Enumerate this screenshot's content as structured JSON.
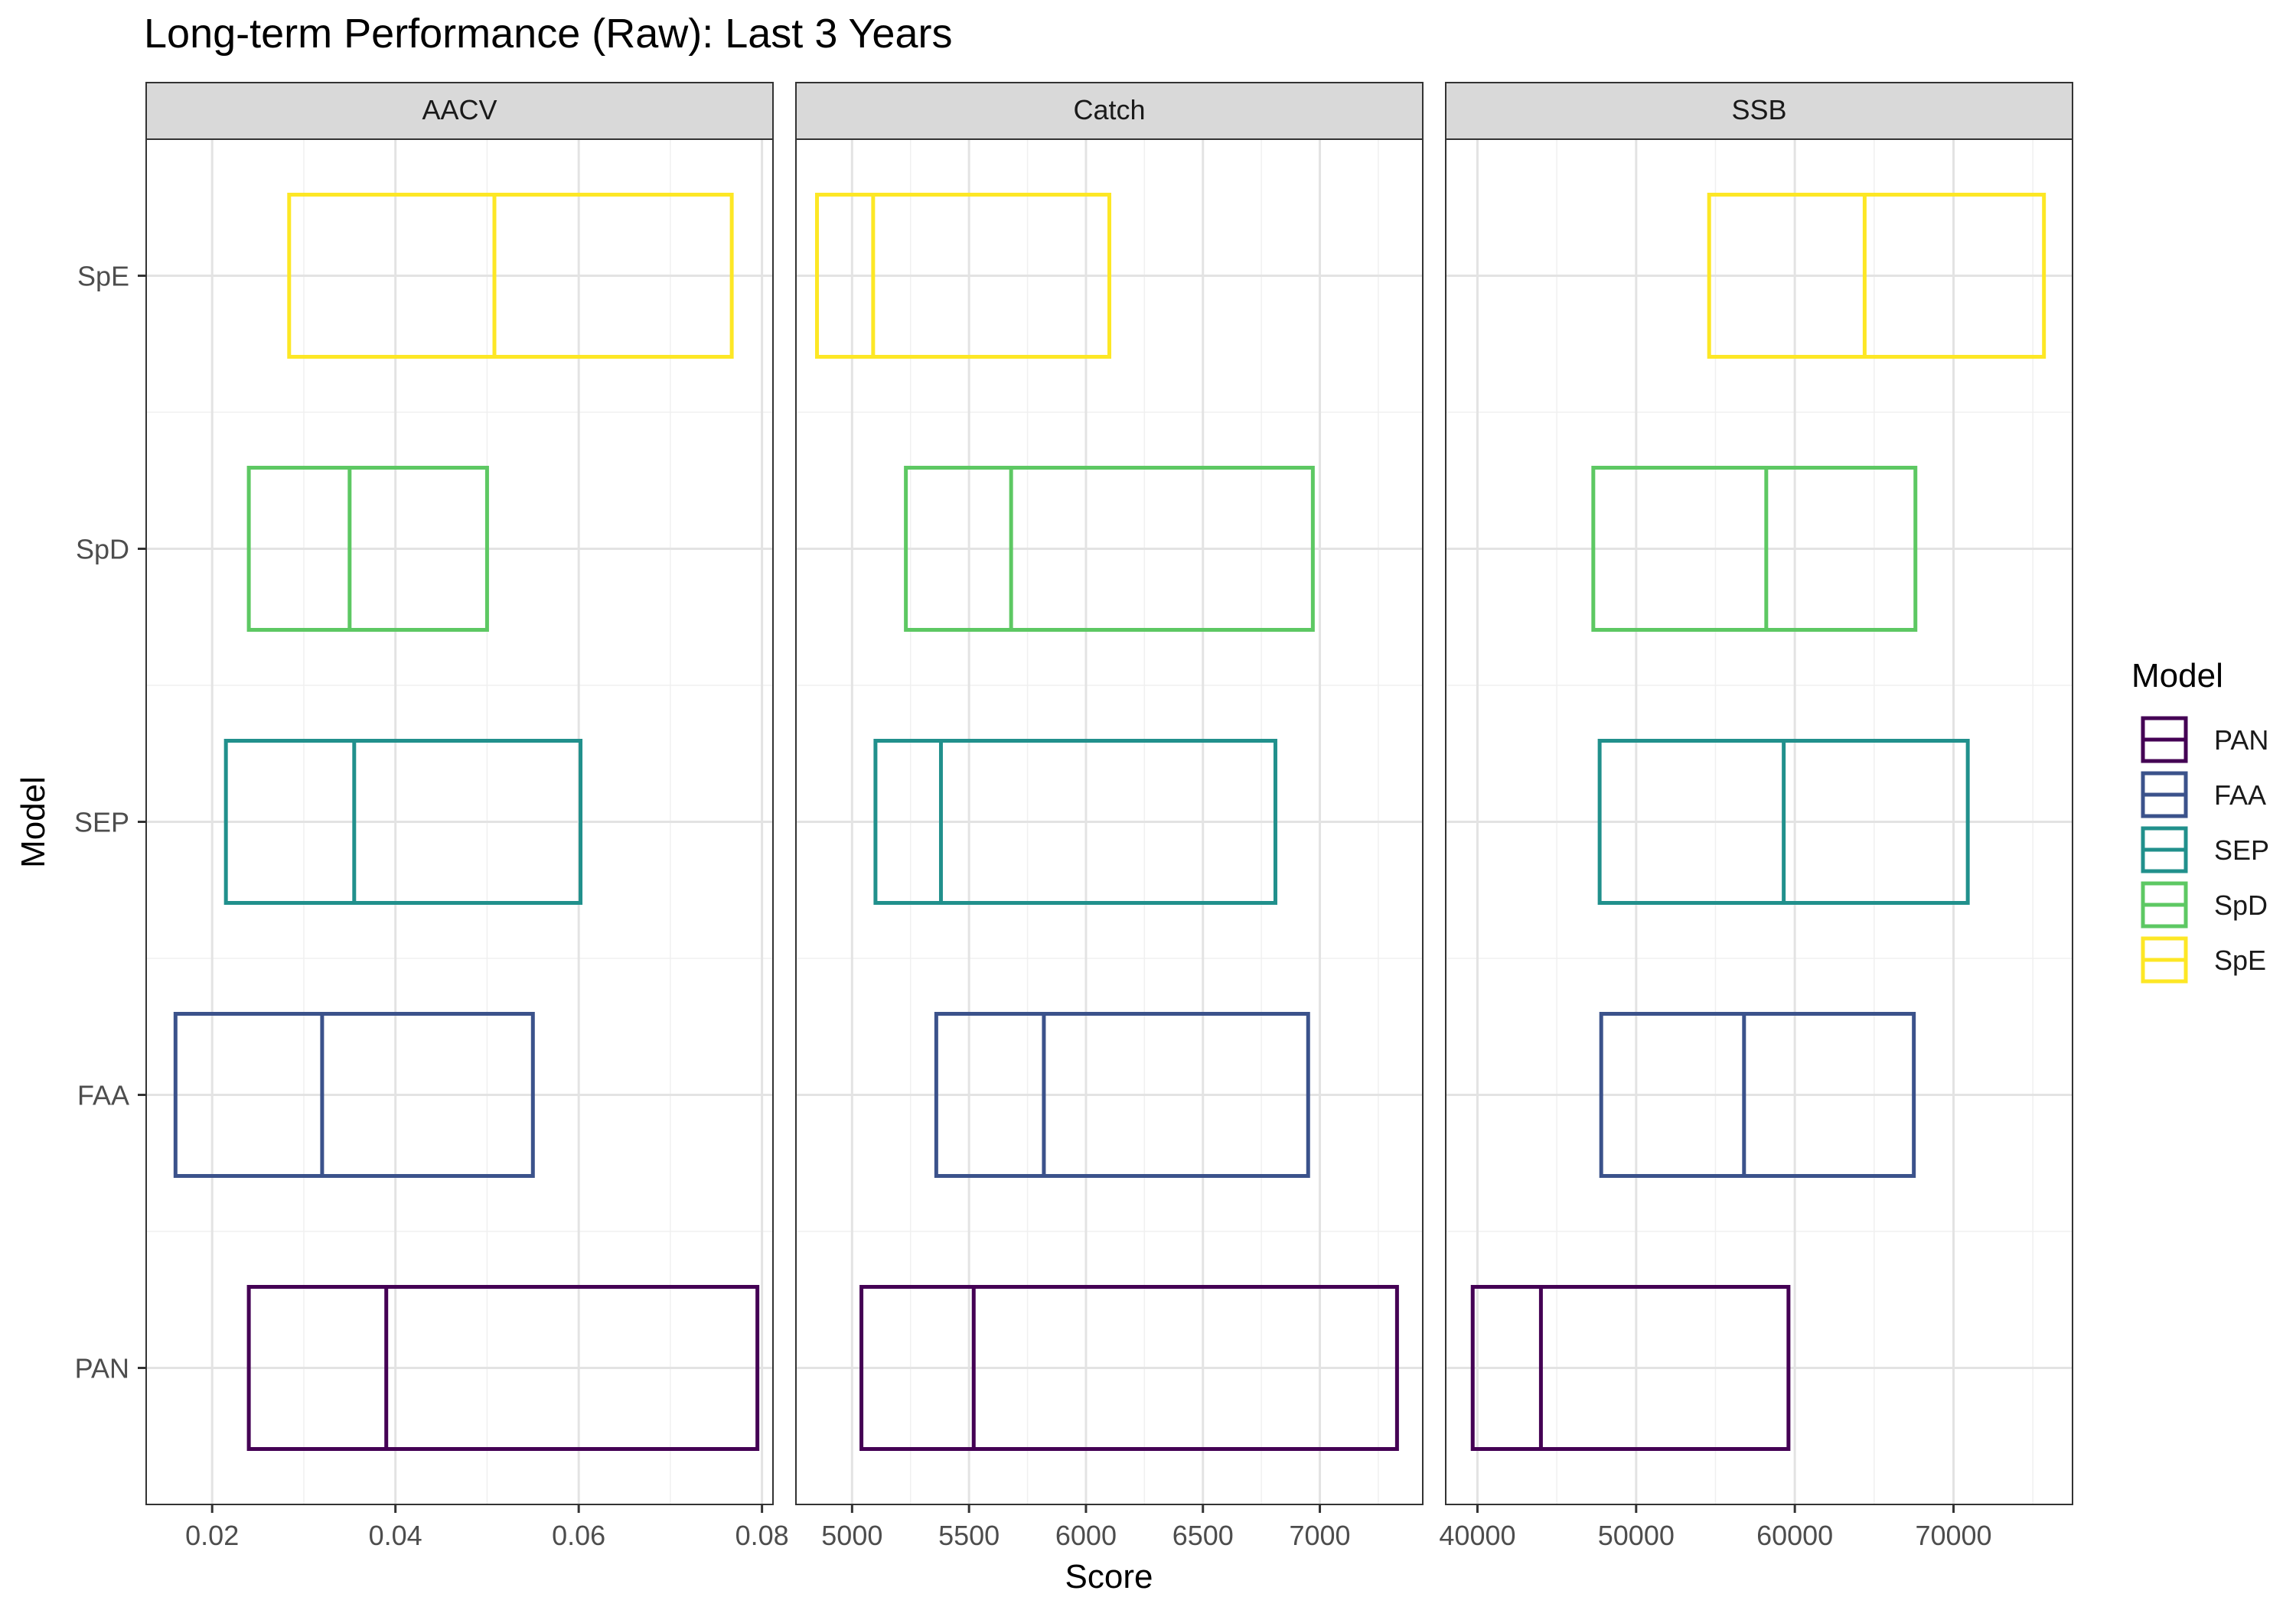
{
  "chart_data": {
    "type": "boxplot",
    "title": "Long-term Performance (Raw): Last 3 Years",
    "xlabel": "Score",
    "ylabel": "Model",
    "categories": [
      "PAN",
      "FAA",
      "SEP",
      "SpD",
      "SpE"
    ],
    "legend": {
      "title": "Model",
      "position": "right",
      "entries": [
        {
          "name": "PAN",
          "color": "#440154"
        },
        {
          "name": "FAA",
          "color": "#3B528B"
        },
        {
          "name": "SEP",
          "color": "#21908C"
        },
        {
          "name": "SpD",
          "color": "#5DC863"
        },
        {
          "name": "SpE",
          "color": "#FDE725"
        }
      ]
    },
    "grid": true,
    "panels": [
      {
        "name": "AACV",
        "xlim": [
          0.0128,
          0.0812
        ],
        "ticks": [
          0.02,
          0.04,
          0.06,
          0.08
        ],
        "tick_labels": [
          "0.02",
          "0.04",
          "0.06",
          "0.08"
        ],
        "boxes": [
          {
            "model": "PAN",
            "q1": 0.024,
            "median": 0.039,
            "q3": 0.0795
          },
          {
            "model": "FAA",
            "q1": 0.016,
            "median": 0.032,
            "q3": 0.055
          },
          {
            "model": "SEP",
            "q1": 0.0215,
            "median": 0.0355,
            "q3": 0.0602
          },
          {
            "model": "SpD",
            "q1": 0.024,
            "median": 0.035,
            "q3": 0.05
          },
          {
            "model": "SpE",
            "q1": 0.0284,
            "median": 0.0508,
            "q3": 0.0767
          }
        ]
      },
      {
        "name": "Catch",
        "xlim": [
          4760,
          7440
        ],
        "ticks": [
          5000,
          5500,
          6000,
          6500,
          7000
        ],
        "tick_labels": [
          "5000",
          "5500",
          "6000",
          "6500",
          "7000"
        ],
        "boxes": [
          {
            "model": "PAN",
            "q1": 5040,
            "median": 5520,
            "q3": 7330
          },
          {
            "model": "FAA",
            "q1": 5360,
            "median": 5820,
            "q3": 6950
          },
          {
            "model": "SEP",
            "q1": 5100,
            "median": 5380,
            "q3": 6810
          },
          {
            "model": "SpD",
            "q1": 5230,
            "median": 5680,
            "q3": 6970
          },
          {
            "model": "SpE",
            "q1": 4850,
            "median": 5090,
            "q3": 6100
          }
        ]
      },
      {
        "name": "SSB",
        "xlim": [
          38000,
          77500
        ],
        "ticks": [
          40000,
          50000,
          60000,
          70000
        ],
        "tick_labels": [
          "40000",
          "50000",
          "60000",
          "70000"
        ],
        "boxes": [
          {
            "model": "PAN",
            "q1": 39700,
            "median": 44000,
            "q3": 59600
          },
          {
            "model": "FAA",
            "q1": 47800,
            "median": 56800,
            "q3": 67500
          },
          {
            "model": "SEP",
            "q1": 47700,
            "median": 59300,
            "q3": 70900
          },
          {
            "model": "SpD",
            "q1": 47300,
            "median": 58200,
            "q3": 67600
          },
          {
            "model": "SpE",
            "q1": 54600,
            "median": 64400,
            "q3": 75700
          }
        ]
      }
    ]
  }
}
